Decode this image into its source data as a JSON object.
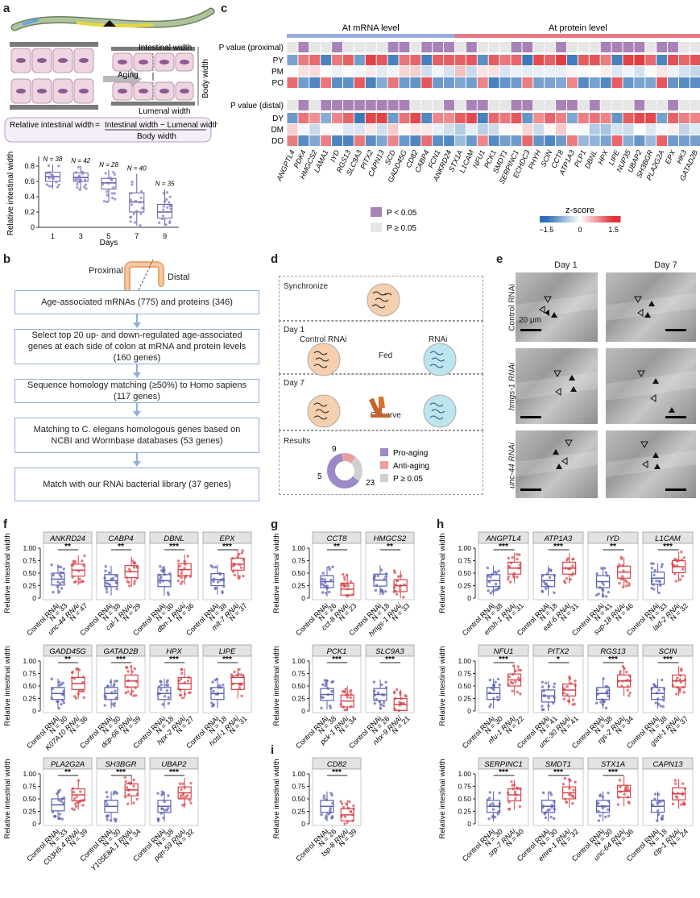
{
  "panels": {
    "a": "a",
    "b": "b",
    "c": "c",
    "d": "d",
    "e": "e",
    "f": "f",
    "g": "g",
    "h": "h",
    "i": "i"
  },
  "panel_a": {
    "aging_label": "Aging",
    "intestinal_width": "Intestinal width",
    "body_width": "Body width",
    "lumenal_width": "Lumenal width",
    "formula_left": "Relative intestinal width",
    "formula_numerator": "Intestinal width − Lumenal width",
    "formula_denominator": "Body width",
    "chart": {
      "ylabel": "Relative intestinal width",
      "xlabel": "Days",
      "days": [
        "1",
        "3",
        "5",
        "7",
        "9"
      ],
      "n_labels": [
        "N = 38",
        "N = 42",
        "N = 28",
        "N = 40",
        "N = 35"
      ],
      "yticks": [
        "0",
        "0.2",
        "0.4",
        "0.6",
        "0.8"
      ],
      "stats": [
        {
          "q1": 0.6,
          "med": 0.66,
          "q3": 0.72,
          "lo": 0.5,
          "hi": 0.82
        },
        {
          "q1": 0.6,
          "med": 0.65,
          "q3": 0.71,
          "lo": 0.48,
          "hi": 0.8
        },
        {
          "q1": 0.5,
          "med": 0.58,
          "q3": 0.64,
          "lo": 0.33,
          "hi": 0.75
        },
        {
          "q1": 0.2,
          "med": 0.33,
          "q3": 0.45,
          "lo": 0.02,
          "hi": 0.7
        },
        {
          "q1": 0.12,
          "med": 0.2,
          "q3": 0.3,
          "lo": 0.02,
          "hi": 0.5
        }
      ]
    }
  },
  "panel_b": {
    "proximal": "Proximal",
    "distal": "Distal",
    "steps": [
      "Age-associated mRNAs (775) and proteins (346)",
      "Select top 20 up- and down-regulated age-associated genes at each side of colon at mRNA and protein levels (160 genes)",
      "Sequence homology matching (≥50%) to Homo sapiens (117 genes)",
      "Matching to C. elegans homologous genes based on NCBI and Wormbase databases (53 genes)",
      "Match with our RNAi bacterial library (37 genes)"
    ]
  },
  "panel_c": {
    "mrna_label": "At mRNA level",
    "protein_label": "At protein level",
    "pval_proximal": "P value (proximal)",
    "pval_distal": "P value (distal)",
    "rows_top": [
      "PY",
      "PM",
      "PO"
    ],
    "rows_bottom": [
      "DY",
      "DM",
      "DO"
    ],
    "genes": [
      "ANGPTL4",
      "PDK4",
      "HMGCS2",
      "LAMA1",
      "IYD",
      "RGS13",
      "SLC9A3",
      "PITX2",
      "CAPN13",
      "SCD",
      "GADD45G",
      "CD82",
      "CABP4",
      "FCN1",
      "ANKRD24",
      "STX1A",
      "L1CAM",
      "NFU1",
      "PCK1",
      "SMDT1",
      "SERPINC1",
      "ECHDC3",
      "PHYH",
      "SCIN",
      "CCT8",
      "ATP1A3",
      "PLP1",
      "DBNL",
      "HPX",
      "LIPE",
      "NUP35",
      "UBAP2",
      "SH3BGR",
      "PLA2G2A",
      "EPX",
      "HK3",
      "GATAD2B"
    ],
    "legend_sig": "P < 0.05",
    "legend_nonsig": "P ≥ 0.05",
    "zscore_title": "z-score",
    "zscore_ticks": [
      "−1.5",
      "0",
      "1.5"
    ],
    "colors": {
      "sig": "#a983b8",
      "nonsig": "#e6e6e6",
      "blue": "#2e6fb5",
      "red": "#e0343a",
      "mrna_bar": "#9aaedd",
      "protein_bar": "#e07b84"
    }
  },
  "panel_d": {
    "synchronize": "Synchronize",
    "day1": "Day 1",
    "control_rnai": "Control RNAi",
    "rnai": "RNAi",
    "fed": "Fed",
    "day7": "Day 7",
    "observe": "Observe",
    "results": "Results",
    "donut": {
      "values": [
        23,
        5,
        9
      ],
      "labels": [
        "23",
        "5",
        "9"
      ],
      "legend": [
        "Pro-aging",
        "Anti-aging",
        "P ≥ 0.05"
      ],
      "colors": [
        "#9c8ac6",
        "#e8a0a0",
        "#cfcfcf"
      ]
    }
  },
  "panel_e": {
    "col_labels": [
      "Day 1",
      "Day 7"
    ],
    "row_labels": [
      "Control RNAi",
      "hmgs-1 RNAi",
      "unc-44 RNAi"
    ],
    "scale": "20 μm"
  },
  "chart_data": [
    {
      "type": "box",
      "panel": "f",
      "row": 0,
      "genes": [
        "ANKRD24",
        "CABP4",
        "DBNL",
        "EPX"
      ],
      "sig": [
        "**",
        "**",
        "***",
        "***"
      ],
      "ctrl_n": [
        "N = 33",
        "N = 38",
        "N = 30",
        "N = 38"
      ],
      "rnai": [
        "unc-44 RNAi",
        "cal-1 RNAi",
        "dbn-1 RNAi",
        "mlt-7 RNAi"
      ],
      "rnai_n": [
        "N = 47",
        "N = 29",
        "N = 36",
        "N = 37"
      ],
      "ctrl_med": [
        0.38,
        0.35,
        0.35,
        0.37
      ],
      "rnai_med": [
        0.56,
        0.53,
        0.57,
        0.68
      ]
    },
    {
      "type": "box",
      "panel": "f",
      "row": 1,
      "genes": [
        "GADD45G",
        "GATAD2B",
        "HPX",
        "LIPE"
      ],
      "sig": [
        "**",
        "***",
        "***",
        "***"
      ],
      "ctrl_n": [
        "N = 30",
        "N = 30",
        "N = 18",
        "N = 18"
      ],
      "rnai": [
        "K07A10 RNAi",
        "dcp-66 RNAi",
        "hpx-2 RNAi",
        "hosl-1 RNAi"
      ],
      "rnai_n": [
        "N = 36",
        "N = 39",
        "N = 27",
        "N = 31"
      ],
      "ctrl_med": [
        0.35,
        0.35,
        0.35,
        0.35
      ],
      "rnai_med": [
        0.55,
        0.6,
        0.55,
        0.55
      ]
    },
    {
      "type": "box",
      "panel": "f",
      "row": 2,
      "genes": [
        "PLA2G2A",
        "SH3BGR",
        "UBAP2"
      ],
      "sig": [
        "**",
        "***",
        "***"
      ],
      "ctrl_n": [
        "N = 33",
        "N = 30",
        "N = 38"
      ],
      "rnai": [
        "C03H5.4 RNAi",
        "Y105E8A.1 RNAi",
        "pqn-59 RNAi"
      ],
      "rnai_n": [
        "N = 39",
        "N = 34",
        "N = 32"
      ],
      "ctrl_med": [
        0.38,
        0.35,
        0.35
      ],
      "rnai_med": [
        0.58,
        0.68,
        0.62
      ]
    },
    {
      "type": "box",
      "panel": "g",
      "row": 0,
      "genes": [
        "CCT8",
        "HMGCS2"
      ],
      "sig": [
        "**",
        "**"
      ],
      "ctrl_n": [
        "N = 26",
        "N = 18"
      ],
      "rnai": [
        "cct-8 RNAi",
        "hmgs-1 RNAi"
      ],
      "rnai_n": [
        "N = 23",
        "N = 33"
      ],
      "ctrl_med": [
        0.33,
        0.36
      ],
      "rnai_med": [
        0.18,
        0.25
      ]
    },
    {
      "type": "box",
      "panel": "g",
      "row": 1,
      "genes": [
        "PCK1",
        "SLC9A3"
      ],
      "sig": [
        "***",
        "***"
      ],
      "ctrl_n": [
        "N = 38",
        "N = 26"
      ],
      "rnai": [
        "pck-1 RNAi",
        "nhx-9 RNAi"
      ],
      "rnai_n": [
        "N = 34",
        "N = 21"
      ],
      "ctrl_med": [
        0.33,
        0.33
      ],
      "rnai_med": [
        0.2,
        0.13
      ]
    },
    {
      "type": "box",
      "panel": "i",
      "row": 0,
      "genes": [
        "CD82"
      ],
      "sig": [
        "***"
      ],
      "ctrl_n": [
        "N = 26"
      ],
      "rnai": [
        "tsp-8 RNAi"
      ],
      "rnai_n": [
        "N = 39"
      ],
      "ctrl_med": [
        0.35
      ],
      "rnai_med": [
        0.18
      ]
    },
    {
      "type": "box",
      "panel": "h",
      "row": 0,
      "genes": [
        "ANGPTL4",
        "ATP1A3",
        "IYD",
        "L1CAM"
      ],
      "sig": [
        "***",
        "***",
        "**",
        "***"
      ],
      "ctrl_n": [
        "N = 38",
        "N = 18",
        "N = 41",
        "N = 33"
      ],
      "rnai": [
        "ensh-1 RNAi",
        "eat-6 RNAi",
        "sup-18 RNAi",
        "lad-2 RNAi"
      ],
      "rnai_n": [
        "N = 31",
        "N = 31",
        "N = 46",
        "N = 32"
      ],
      "ctrl_med": [
        0.35,
        0.35,
        0.33,
        0.4
      ],
      "rnai_med": [
        0.6,
        0.6,
        0.52,
        0.63
      ]
    },
    {
      "type": "box",
      "panel": "h",
      "row": 1,
      "genes": [
        "NFU1",
        "PITX2",
        "RGS13",
        "SCIN"
      ],
      "sig": [
        "***",
        "*",
        "***",
        "***"
      ],
      "ctrl_n": [
        "N = 30",
        "N = 41",
        "N = 38",
        "N = 38"
      ],
      "rnai": [
        "nfu-1 RNAi",
        "unc-30 RNAi",
        "rgs-2 RNAi",
        "gsnl-1 RNAi"
      ],
      "rnai_n": [
        "N = 22",
        "N = 41",
        "N = 34",
        "N = 37"
      ],
      "ctrl_med": [
        0.35,
        0.3,
        0.35,
        0.35
      ],
      "rnai_med": [
        0.62,
        0.42,
        0.6,
        0.6
      ]
    },
    {
      "type": "box",
      "panel": "h",
      "row": 2,
      "genes": [
        "SERPINC1",
        "SMDT1",
        "STX1A",
        "CAPN13"
      ],
      "sig": [
        "***",
        "***",
        "***",
        ""
      ],
      "ctrl_n": [
        "N = 30",
        "N = 30",
        "N = 30",
        "N = 18"
      ],
      "rnai": [
        "srp-7 RNAi",
        "emre-1 RNAi",
        "unc-64 RNAi",
        "clp-1 RNAi"
      ],
      "rnai_n": [
        "N = 40",
        "N = 32",
        "N = 36",
        "N = 24"
      ],
      "ctrl_med": [
        0.35,
        0.35,
        0.35,
        0.35
      ],
      "rnai_med": [
        0.58,
        0.62,
        0.65,
        0.6
      ]
    }
  ],
  "box_common": {
    "ylabel": "Relative intestinal width",
    "yticks": [
      "0",
      "0.25",
      "0.50",
      "0.75",
      "1.00"
    ],
    "control": "Control RNAi",
    "ctrl_color": "#5b5fb0",
    "rnai_color": "#d8434a"
  }
}
